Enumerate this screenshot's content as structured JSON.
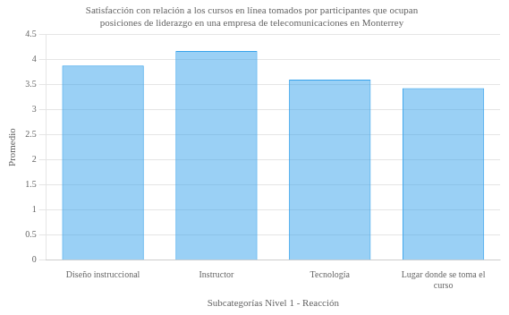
{
  "chart_data": {
    "type": "bar",
    "title": "Satisfacción con relación a los cursos en línea tomados por participantes que ocupan\nposiciones de liderazgo en una empresa de telecomunicaciones en Monterrey",
    "x_label": "Subcategorías Nivel 1 - Reacción",
    "y_label": "Promedio",
    "categories": [
      "Diseño instruccional",
      "Instructor",
      "Tecnología",
      "Lugar donde se toma el\ncurso"
    ],
    "values": [
      3.88,
      4.17,
      3.6,
      3.43
    ],
    "ylim": [
      0,
      4.5
    ],
    "yticks": [
      0,
      0.5,
      1,
      1.5,
      2,
      2.5,
      3,
      3.5,
      4,
      4.5
    ],
    "grid": true
  }
}
